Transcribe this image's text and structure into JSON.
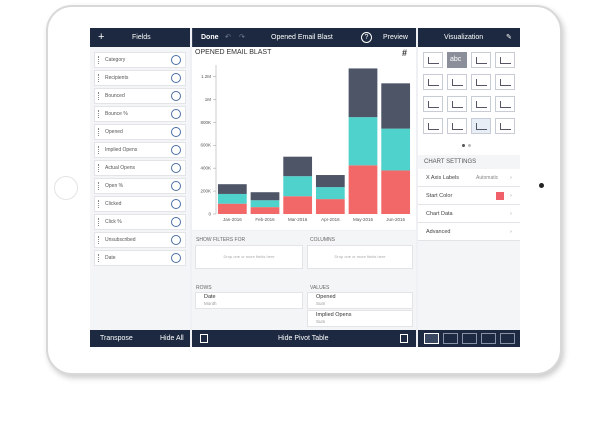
{
  "fields_panel": {
    "title": "Fields",
    "items": [
      "Category",
      "Recipients",
      "Bounced",
      "Bounce %",
      "Opened",
      "Implied Opens",
      "Actual Opens",
      "Open %",
      "Clicked",
      "Click %",
      "Unsubscribed",
      "Date"
    ],
    "footer_left": "Transpose",
    "footer_right": "Hide All"
  },
  "toolbar": {
    "done": "Done",
    "title": "Opened Email Blast",
    "help": "?",
    "preview": "Preview"
  },
  "chart_data": {
    "type": "bar",
    "stacked": true,
    "title": "OPENED EMAIL BLAST",
    "categories": [
      "Jan-2016",
      "Feb-2016",
      "Mar-2016",
      "Apr-2016",
      "May-2016",
      "Jun-2016"
    ],
    "series": [
      {
        "color": "#f26767",
        "values": [
          90000,
          60000,
          155000,
          130000,
          425000,
          380000
        ]
      },
      {
        "color": "#4fd1cc",
        "values": [
          85000,
          60000,
          175000,
          105000,
          420000,
          365000
        ]
      },
      {
        "color": "#4d5566",
        "values": [
          85000,
          70000,
          170000,
          105000,
          425000,
          395000
        ]
      }
    ],
    "ylim": [
      0,
      1300000
    ],
    "yticks": [
      0,
      {
        "value": 200000,
        "label": "200K"
      },
      {
        "value": 400000,
        "label": "400K"
      },
      {
        "value": 600000,
        "label": "600K"
      },
      {
        "value": 800000,
        "label": "800K"
      },
      {
        "value": 1000000,
        "label": "1M"
      },
      {
        "value": 1200000,
        "label": "1.2M"
      }
    ]
  },
  "pivot": {
    "filters": {
      "label": "SHOW FILTERS FOR",
      "placeholder": "Drop one or more fields here"
    },
    "columns": {
      "label": "COLUMNS",
      "placeholder": "Drop one or more fields here"
    },
    "rows": {
      "label": "ROWS",
      "fields": [
        {
          "name": "Date",
          "detail": "Month"
        }
      ]
    },
    "values": {
      "label": "VALUES",
      "fields": [
        {
          "name": "Opened",
          "detail": "Sum"
        },
        {
          "name": "Implied Opens",
          "detail": "Sum"
        }
      ]
    },
    "footer": "Hide Pivot Table"
  },
  "visualization": {
    "title": "Visualization",
    "icon_text": "abc",
    "settings_title": "CHART SETTINGS",
    "settings": [
      {
        "label": "X Axis Labels",
        "value": "Automatic"
      },
      {
        "label": "Start Color"
      },
      {
        "label": "Chart Data"
      },
      {
        "label": "Advanced"
      }
    ],
    "start_color": "#f0606a"
  }
}
